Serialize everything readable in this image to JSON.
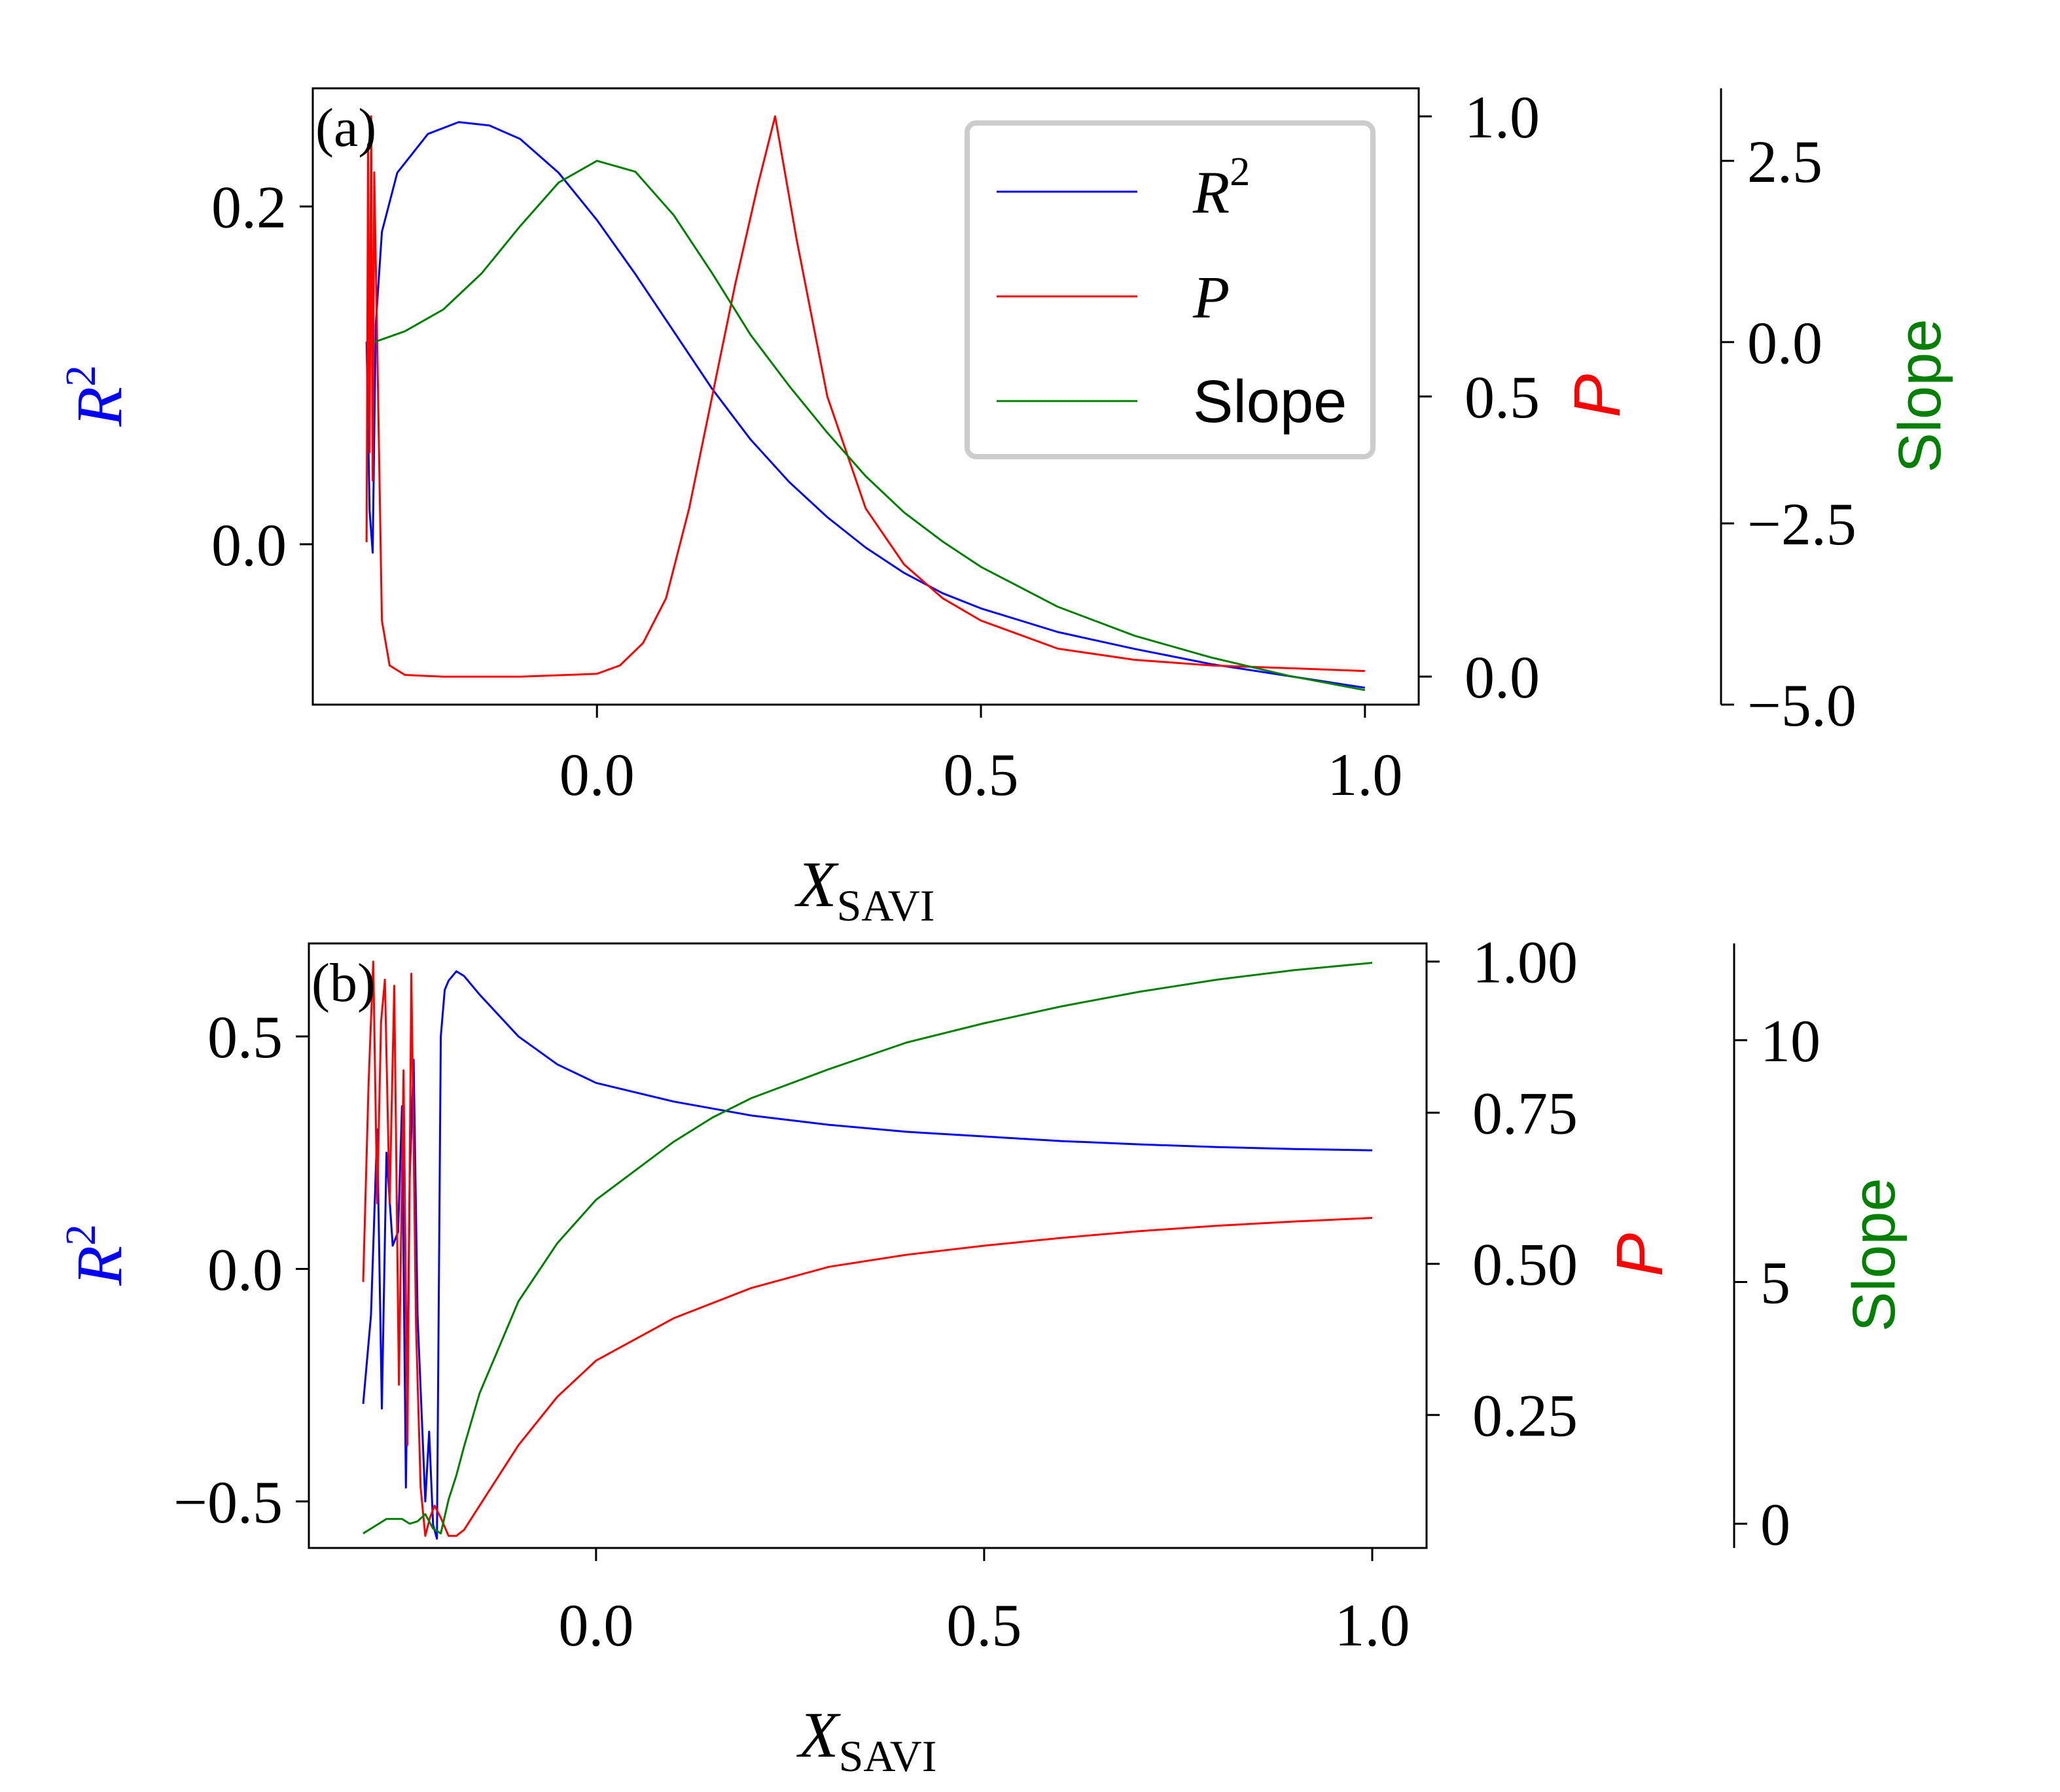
{
  "chart_data": [
    {
      "panel_label": "(a)",
      "type": "line",
      "xlabel": "X",
      "xlabel_sub": "SAVI",
      "xlim": [
        -0.37,
        1.07
      ],
      "xticks": [
        "0.0",
        "0.5",
        "1.0"
      ],
      "xtick_values": [
        0.0,
        0.5,
        1.0
      ],
      "legend": {
        "placement": "top-right",
        "entries": [
          {
            "label": "R",
            "sup": "2",
            "series": "R2"
          },
          {
            "label": "P",
            "sup": "",
            "series": "P"
          },
          {
            "label": "Slope",
            "sup": "",
            "series": "Slope"
          }
        ]
      },
      "axes": {
        "R2": {
          "label": "R",
          "sup": "2",
          "color": "#0000ff",
          "ylim": [
            -0.095,
            0.27
          ],
          "ticks": [
            "0.0",
            "0.2"
          ],
          "tick_values": [
            0.0,
            0.2
          ]
        },
        "P": {
          "label": "P",
          "color": "#ff0000",
          "ylim": [
            -0.05,
            1.05
          ],
          "ticks": [
            "0.0",
            "0.5",
            "1.0"
          ],
          "tick_values": [
            0.0,
            0.5,
            1.0
          ]
        },
        "Slope": {
          "label": "Slope",
          "color": "#008000",
          "ylim": [
            -5.0,
            3.5
          ],
          "ticks": [
            "2.5",
            "0.0",
            "−2.5",
            "−5.0"
          ],
          "tick_values": [
            2.5,
            0.0,
            -2.5,
            -5.0
          ]
        }
      },
      "series": [
        {
          "name": "R2",
          "axis": "R2",
          "color": "#0000ff",
          "x": [
            -0.3,
            -0.296,
            -0.292,
            -0.288,
            -0.28,
            -0.26,
            -0.22,
            -0.18,
            -0.14,
            -0.1,
            -0.05,
            0.0,
            0.05,
            0.1,
            0.15,
            0.2,
            0.25,
            0.3,
            0.35,
            0.4,
            0.45,
            0.5,
            0.6,
            0.7,
            0.8,
            0.9,
            1.0
          ],
          "y": [
            0.12,
            0.02,
            -0.005,
            0.13,
            0.185,
            0.22,
            0.243,
            0.25,
            0.248,
            0.24,
            0.22,
            0.192,
            0.16,
            0.126,
            0.092,
            0.062,
            0.037,
            0.016,
            -0.002,
            -0.017,
            -0.029,
            -0.038,
            -0.052,
            -0.062,
            -0.071,
            -0.078,
            -0.085
          ]
        },
        {
          "name": "P",
          "axis": "P",
          "color": "#ff0000",
          "x": [
            -0.3,
            -0.298,
            -0.296,
            -0.294,
            -0.292,
            -0.29,
            -0.285,
            -0.28,
            -0.27,
            -0.25,
            -0.2,
            -0.1,
            0.0,
            0.03,
            0.06,
            0.09,
            0.12,
            0.15,
            0.18,
            0.21,
            0.232,
            0.26,
            0.3,
            0.35,
            0.4,
            0.45,
            0.5,
            0.6,
            0.7,
            0.8,
            0.9,
            1.0
          ],
          "y": [
            0.24,
            0.95,
            0.4,
            1.0,
            0.35,
            0.9,
            0.5,
            0.1,
            0.02,
            0.003,
            0.0,
            0.0,
            0.005,
            0.02,
            0.06,
            0.14,
            0.3,
            0.5,
            0.7,
            0.88,
            1.0,
            0.78,
            0.5,
            0.3,
            0.2,
            0.14,
            0.1,
            0.05,
            0.03,
            0.02,
            0.015,
            0.01
          ]
        },
        {
          "name": "Slope",
          "axis": "Slope",
          "color": "#008000",
          "x": [
            -0.29,
            -0.25,
            -0.2,
            -0.15,
            -0.1,
            -0.05,
            0.0,
            0.05,
            0.1,
            0.15,
            0.2,
            0.25,
            0.3,
            0.35,
            0.4,
            0.45,
            0.5,
            0.6,
            0.7,
            0.8,
            0.9,
            1.0
          ],
          "y": [
            0.0,
            0.15,
            0.45,
            0.95,
            1.6,
            2.2,
            2.5,
            2.35,
            1.75,
            0.95,
            0.1,
            -0.6,
            -1.25,
            -1.85,
            -2.35,
            -2.75,
            -3.1,
            -3.65,
            -4.05,
            -4.35,
            -4.6,
            -4.8
          ]
        }
      ]
    },
    {
      "panel_label": "(b)",
      "type": "line",
      "xlabel": "X",
      "xlabel_sub": "SAVI",
      "xlim": [
        -0.37,
        1.07
      ],
      "xticks": [
        "0.0",
        "0.5",
        "1.0"
      ],
      "xtick_values": [
        0.0,
        0.5,
        1.0
      ],
      "axes": {
        "R2": {
          "label": "R",
          "sup": "2",
          "color": "#0000ff",
          "ylim": [
            -0.6,
            0.7
          ],
          "ticks": [
            "0.5",
            "0.0",
            "−0.5"
          ],
          "tick_values": [
            0.5,
            0.0,
            -0.5
          ]
        },
        "P": {
          "label": "P",
          "color": "#ff0000",
          "ylim": [
            0.03,
            1.03
          ],
          "ticks": [
            "1.00",
            "0.75",
            "0.50",
            "0.25"
          ],
          "tick_values": [
            1.0,
            0.75,
            0.5,
            0.25
          ]
        },
        "Slope": {
          "label": "Slope",
          "color": "#008000",
          "ylim": [
            -0.5,
            12.0
          ],
          "ticks": [
            "10",
            "5",
            "0"
          ],
          "tick_values": [
            10,
            5,
            0
          ]
        }
      },
      "series": [
        {
          "name": "R2",
          "axis": "R2",
          "color": "#0000ff",
          "x": [
            -0.3,
            -0.29,
            -0.282,
            -0.276,
            -0.27,
            -0.262,
            -0.255,
            -0.25,
            -0.245,
            -0.24,
            -0.235,
            -0.23,
            -0.225,
            -0.22,
            -0.215,
            -0.21,
            -0.205,
            -0.2,
            -0.195,
            -0.19,
            -0.18,
            -0.17,
            -0.15,
            -0.1,
            -0.05,
            0.0,
            0.1,
            0.2,
            0.3,
            0.4,
            0.5,
            0.6,
            0.7,
            0.8,
            0.9,
            1.0
          ],
          "y": [
            -0.29,
            -0.1,
            0.3,
            -0.3,
            0.25,
            0.05,
            0.08,
            0.35,
            -0.47,
            0.2,
            0.45,
            -0.1,
            -0.3,
            -0.5,
            -0.35,
            -0.55,
            -0.58,
            0.5,
            0.6,
            0.62,
            0.64,
            0.63,
            0.59,
            0.5,
            0.44,
            0.4,
            0.36,
            0.33,
            0.31,
            0.295,
            0.285,
            0.275,
            0.268,
            0.262,
            0.258,
            0.255
          ]
        },
        {
          "name": "P",
          "axis": "P",
          "color": "#ff0000",
          "x": [
            -0.3,
            -0.293,
            -0.287,
            -0.282,
            -0.277,
            -0.272,
            -0.266,
            -0.26,
            -0.254,
            -0.248,
            -0.243,
            -0.238,
            -0.232,
            -0.226,
            -0.22,
            -0.214,
            -0.208,
            -0.2,
            -0.19,
            -0.18,
            -0.17,
            -0.15,
            -0.1,
            -0.05,
            0.0,
            0.1,
            0.2,
            0.3,
            0.4,
            0.5,
            0.6,
            0.7,
            0.8,
            0.9,
            1.0
          ],
          "y": [
            0.47,
            0.8,
            1.0,
            0.6,
            0.9,
            0.97,
            0.6,
            0.96,
            0.3,
            0.82,
            0.2,
            0.98,
            0.4,
            0.13,
            0.05,
            0.08,
            0.1,
            0.08,
            0.05,
            0.05,
            0.06,
            0.1,
            0.2,
            0.28,
            0.34,
            0.41,
            0.46,
            0.495,
            0.515,
            0.53,
            0.543,
            0.554,
            0.563,
            0.57,
            0.576
          ]
        },
        {
          "name": "Slope",
          "axis": "Slope",
          "color": "#008000",
          "x": [
            -0.3,
            -0.28,
            -0.27,
            -0.25,
            -0.24,
            -0.23,
            -0.22,
            -0.21,
            -0.2,
            -0.19,
            -0.18,
            -0.17,
            -0.15,
            -0.1,
            -0.05,
            0.0,
            0.05,
            0.1,
            0.15,
            0.2,
            0.3,
            0.4,
            0.5,
            0.6,
            0.7,
            0.8,
            0.9,
            1.0
          ],
          "y": [
            -0.2,
            0.0,
            0.1,
            0.1,
            0.0,
            0.05,
            0.2,
            -0.1,
            -0.2,
            0.5,
            1.0,
            1.6,
            2.7,
            4.6,
            5.8,
            6.7,
            7.3,
            7.9,
            8.4,
            8.8,
            9.4,
            9.95,
            10.35,
            10.7,
            11.0,
            11.25,
            11.45,
            11.6
          ]
        }
      ]
    }
  ]
}
